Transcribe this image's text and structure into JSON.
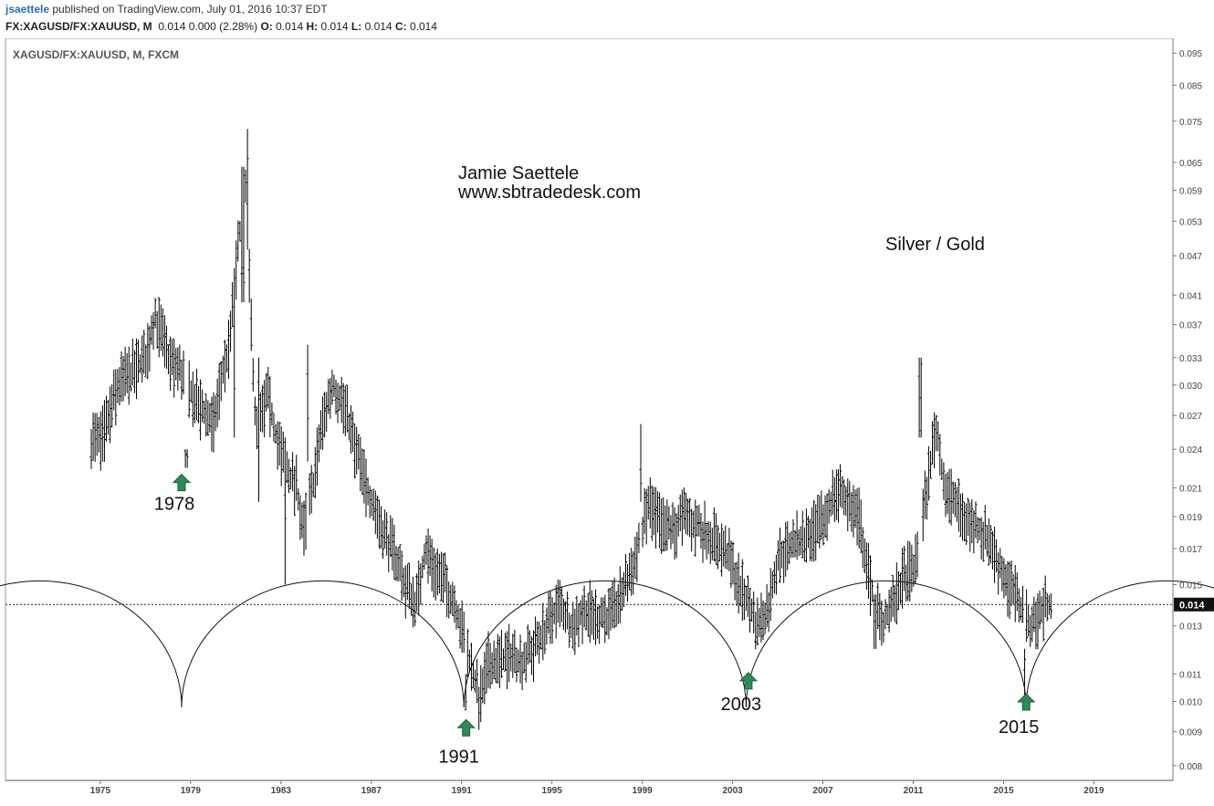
{
  "header": {
    "author": "jsaettele",
    "published": "published on TradingView.com, July 01, 2016 10:37 EDT",
    "symbol": "FX:XAGUSD/FX:XAUUSD, M",
    "quote": "0.014 0.000 (2.28%)",
    "ohlc": [
      {
        "label": "O:",
        "value": "0.014"
      },
      {
        "label": "H:",
        "value": "0.014"
      },
      {
        "label": "L:",
        "value": "0.014"
      },
      {
        "label": "C:",
        "value": "0.014"
      }
    ]
  },
  "chart_data": {
    "type": "bar",
    "symbol_label": "XAGUSD/FX:XAUUSD, M, FXCM",
    "scale": "log",
    "ylim": [
      0.0076,
      0.1
    ],
    "xlim": [
      1970.8,
      2022.5
    ],
    "y_ticks": [
      "0.095",
      "0.085",
      "0.075",
      "0.065",
      "0.059",
      "0.053",
      "0.047",
      "0.041",
      "0.037",
      "0.033",
      "0.030",
      "0.027",
      "0.024",
      "0.021",
      "0.019",
      "0.017",
      "0.015",
      "0.013",
      "0.011",
      "0.010",
      "0.009",
      "0.008"
    ],
    "x_ticks": [
      "1975",
      "1979",
      "1983",
      "1987",
      "1991",
      "1995",
      "1999",
      "2003",
      "2007",
      "2011",
      "2015",
      "2019"
    ],
    "last_price": {
      "value": 0.014,
      "label": "0.014"
    },
    "annotations": {
      "author": "Jamie Saettele",
      "website": "www.sbtradedesk.com",
      "title": "Silver / Gold"
    },
    "cycle_lows": [
      {
        "label": "1978",
        "x": 1978.6,
        "y": 0.0225
      },
      {
        "label": "1991",
        "x": 1991.2,
        "y": 0.0096
      },
      {
        "label": "2003",
        "x": 2003.7,
        "y": 0.0113
      },
      {
        "label": "2015",
        "x": 2016.0,
        "y": 0.0105
      }
    ],
    "cycle_arcs": [
      {
        "start": 1966.0,
        "end": 1978.6
      },
      {
        "start": 1978.6,
        "end": 1991.1
      },
      {
        "start": 1991.1,
        "end": 2003.6
      },
      {
        "start": 2003.6,
        "end": 2016.0
      },
      {
        "start": 2016.0,
        "end": 2028.5
      }
    ],
    "arc_levels": {
      "top": 0.0152,
      "bottom": 0.0098
    },
    "anchors": [
      [
        1974.6,
        0.025
      ],
      [
        1975.0,
        0.0245
      ],
      [
        1975.4,
        0.027
      ],
      [
        1975.8,
        0.03
      ],
      [
        1976.2,
        0.031
      ],
      [
        1976.7,
        0.032
      ],
      [
        1977.0,
        0.033
      ],
      [
        1977.4,
        0.038
      ],
      [
        1977.7,
        0.036
      ],
      [
        1978.0,
        0.033
      ],
      [
        1978.3,
        0.032
      ],
      [
        1978.7,
        0.031
      ],
      [
        1979.1,
        0.029
      ],
      [
        1979.5,
        0.0275
      ],
      [
        1980.0,
        0.026
      ],
      [
        1980.3,
        0.03
      ],
      [
        1980.7,
        0.034
      ],
      [
        1981.0,
        0.044
      ],
      [
        1981.4,
        0.062
      ],
      [
        1981.9,
        0.025
      ],
      [
        1982.4,
        0.029
      ],
      [
        1982.8,
        0.025
      ],
      [
        1983.3,
        0.022
      ],
      [
        1983.7,
        0.021
      ],
      [
        1984.0,
        0.018
      ],
      [
        1984.4,
        0.021
      ],
      [
        1984.8,
        0.026
      ],
      [
        1985.3,
        0.03
      ],
      [
        1985.8,
        0.028
      ],
      [
        1986.3,
        0.024
      ],
      [
        1986.8,
        0.021
      ],
      [
        1987.3,
        0.019
      ],
      [
        1987.7,
        0.0175
      ],
      [
        1988.1,
        0.0165
      ],
      [
        1988.5,
        0.015
      ],
      [
        1989.0,
        0.014
      ],
      [
        1989.4,
        0.017
      ],
      [
        1989.8,
        0.016
      ],
      [
        1990.3,
        0.015
      ],
      [
        1990.7,
        0.014
      ],
      [
        1991.1,
        0.0125
      ],
      [
        1991.5,
        0.011
      ],
      [
        1991.8,
        0.01
      ],
      [
        1992.2,
        0.0115
      ],
      [
        1992.7,
        0.0115
      ],
      [
        1993.2,
        0.0118
      ],
      [
        1993.7,
        0.0115
      ],
      [
        1994.2,
        0.012
      ],
      [
        1994.8,
        0.013
      ],
      [
        1995.3,
        0.014
      ],
      [
        1995.9,
        0.013
      ],
      [
        1996.5,
        0.0138
      ],
      [
        1997.0,
        0.0134
      ],
      [
        1997.6,
        0.0134
      ],
      [
        1998.1,
        0.0145
      ],
      [
        1998.7,
        0.0165
      ],
      [
        1999.3,
        0.02
      ],
      [
        1999.8,
        0.0185
      ],
      [
        2000.3,
        0.018
      ],
      [
        2000.8,
        0.019
      ],
      [
        2001.3,
        0.0185
      ],
      [
        2001.8,
        0.018
      ],
      [
        2002.3,
        0.0175
      ],
      [
        2002.8,
        0.0165
      ],
      [
        2003.3,
        0.015
      ],
      [
        2003.7,
        0.014
      ],
      [
        2004.1,
        0.013
      ],
      [
        2004.6,
        0.014
      ],
      [
        2005.0,
        0.0165
      ],
      [
        2005.5,
        0.017
      ],
      [
        2006.0,
        0.0175
      ],
      [
        2006.6,
        0.018
      ],
      [
        2007.1,
        0.019
      ],
      [
        2007.6,
        0.021
      ],
      [
        2008.1,
        0.02
      ],
      [
        2008.6,
        0.019
      ],
      [
        2009.1,
        0.015
      ],
      [
        2009.6,
        0.013
      ],
      [
        2010.1,
        0.014
      ],
      [
        2010.6,
        0.0155
      ],
      [
        2011.1,
        0.016
      ],
      [
        2011.6,
        0.021
      ],
      [
        2012.0,
        0.026
      ],
      [
        2012.4,
        0.021
      ],
      [
        2012.8,
        0.02
      ],
      [
        2013.2,
        0.019
      ],
      [
        2013.6,
        0.0185
      ],
      [
        2014.0,
        0.018
      ],
      [
        2014.4,
        0.0175
      ],
      [
        2014.8,
        0.016
      ],
      [
        2015.2,
        0.015
      ],
      [
        2015.7,
        0.014
      ],
      [
        2016.1,
        0.013
      ],
      [
        2016.6,
        0.0135
      ],
      [
        2016.9,
        0.014
      ],
      [
        2017.1,
        0.014
      ]
    ],
    "overrides": [
      {
        "x": 1978.8,
        "high": 0.024,
        "low": 0.0225
      },
      {
        "x": 1980.9,
        "high": 0.045,
        "low": 0.025
      },
      {
        "x": 1981.3,
        "high": 0.064,
        "low": 0.04
      },
      {
        "x": 1981.5,
        "high": 0.073,
        "low": 0.048
      },
      {
        "x": 1982.0,
        "high": 0.033,
        "low": 0.02
      },
      {
        "x": 1983.2,
        "high": 0.025,
        "low": 0.015
      },
      {
        "x": 1984.2,
        "high": 0.0345,
        "low": 0.023
      },
      {
        "x": 1991.2,
        "high": 0.011,
        "low": 0.0097
      },
      {
        "x": 1998.9,
        "high": 0.0262,
        "low": 0.02
      },
      {
        "x": 2009.3,
        "high": 0.0145,
        "low": 0.012
      },
      {
        "x": 2011.3,
        "high": 0.033,
        "low": 0.025
      },
      {
        "x": 2015.9,
        "high": 0.012,
        "low": 0.0098
      }
    ]
  }
}
